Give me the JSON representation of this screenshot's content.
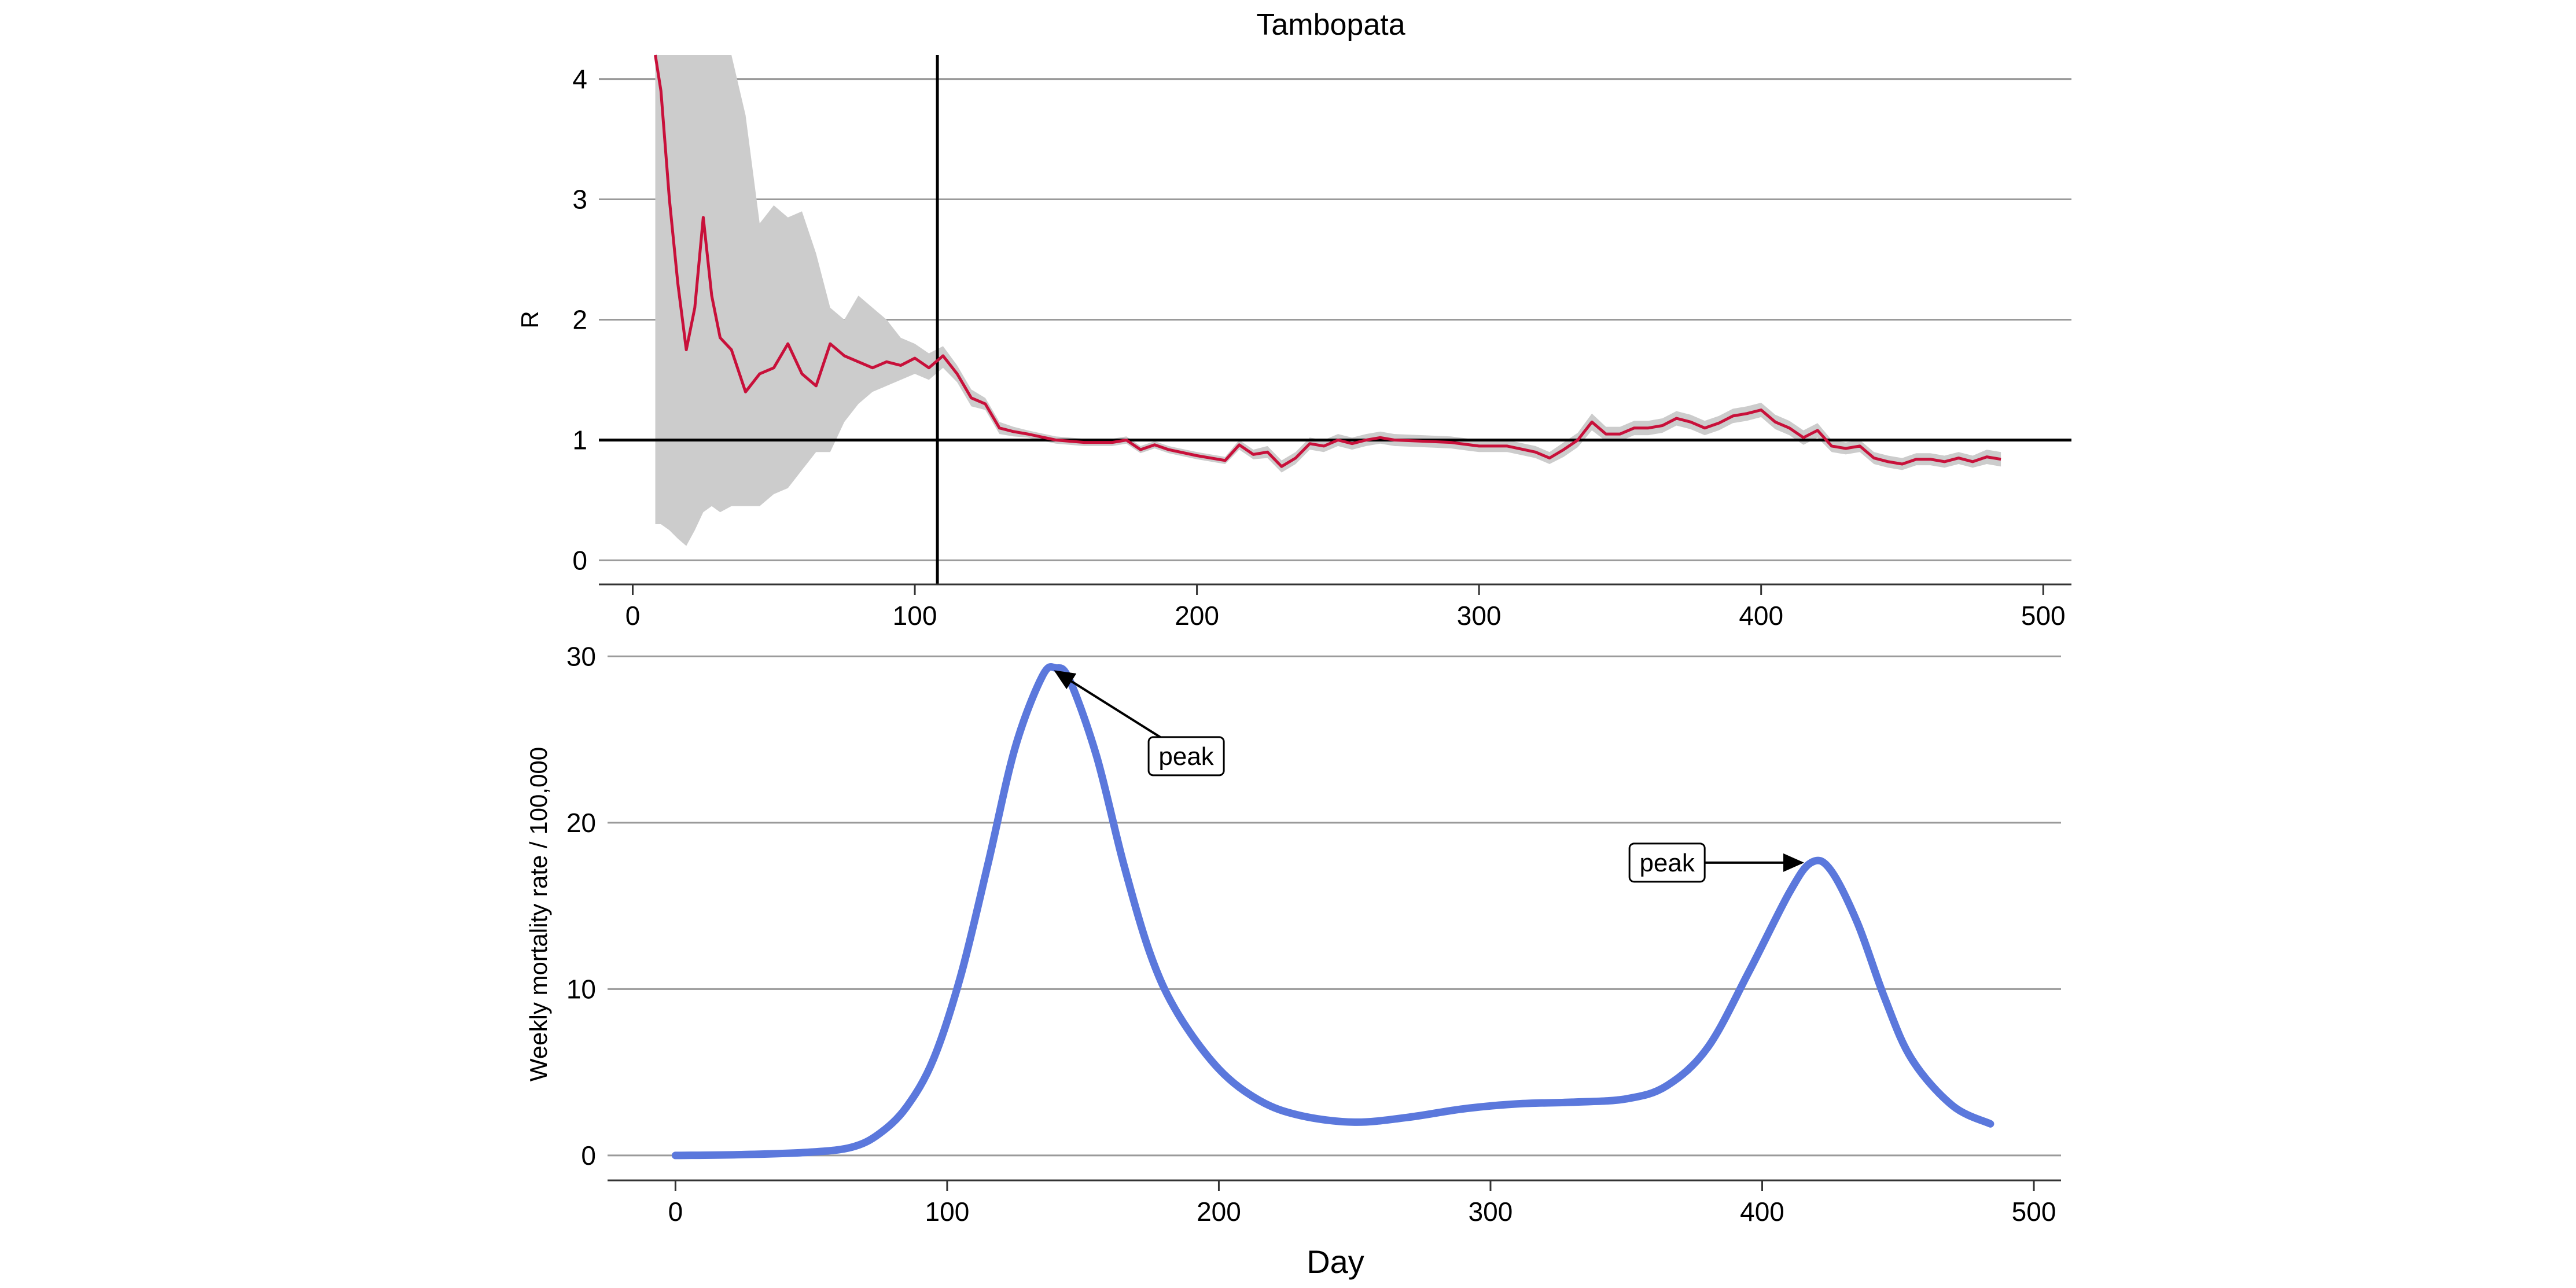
{
  "figure": {
    "title": "Tambopata",
    "xlabel": "Day"
  },
  "chart_data": [
    {
      "type": "line",
      "title": "Tambopata",
      "xlabel": "",
      "ylabel": "R",
      "xlim": [
        -12,
        510
      ],
      "ylim": [
        -0.2,
        4.2
      ],
      "xticks": [
        0,
        100,
        200,
        300,
        400,
        500
      ],
      "yticks": [
        0,
        1,
        2,
        3,
        4
      ],
      "grid": "horizontal",
      "colors": {
        "line": "#c8103a",
        "band": "#cccccc"
      },
      "reference_lines": {
        "horizontal_y": 1,
        "vertical_x": 108
      },
      "x": [
        8,
        10,
        13,
        16,
        19,
        22,
        25,
        28,
        31,
        35,
        40,
        45,
        50,
        55,
        60,
        65,
        70,
        75,
        80,
        85,
        90,
        95,
        100,
        105,
        110,
        115,
        120,
        125,
        130,
        135,
        140,
        150,
        160,
        170,
        175,
        180,
        185,
        190,
        200,
        210,
        215,
        220,
        225,
        230,
        235,
        240,
        245,
        250,
        255,
        260,
        265,
        270,
        280,
        290,
        300,
        310,
        320,
        325,
        330,
        335,
        340,
        345,
        350,
        355,
        360,
        365,
        370,
        375,
        380,
        385,
        390,
        395,
        400,
        405,
        410,
        415,
        420,
        425,
        430,
        435,
        440,
        445,
        450,
        455,
        460,
        465,
        470,
        475,
        480,
        485
      ],
      "y": [
        4.2,
        3.9,
        3.0,
        2.3,
        1.75,
        2.1,
        2.85,
        2.2,
        1.85,
        1.75,
        1.4,
        1.55,
        1.6,
        1.8,
        1.55,
        1.45,
        1.8,
        1.7,
        1.65,
        1.6,
        1.65,
        1.62,
        1.68,
        1.6,
        1.7,
        1.55,
        1.35,
        1.3,
        1.1,
        1.07,
        1.05,
        1.0,
        0.98,
        0.98,
        1.0,
        0.92,
        0.96,
        0.92,
        0.87,
        0.83,
        0.96,
        0.88,
        0.9,
        0.78,
        0.85,
        0.97,
        0.95,
        1.0,
        0.97,
        1.0,
        1.02,
        1.0,
        0.99,
        0.98,
        0.95,
        0.95,
        0.9,
        0.85,
        0.92,
        1.0,
        1.15,
        1.05,
        1.05,
        1.1,
        1.1,
        1.12,
        1.18,
        1.15,
        1.1,
        1.14,
        1.2,
        1.22,
        1.25,
        1.15,
        1.1,
        1.02,
        1.08,
        0.95,
        0.93,
        0.95,
        0.85,
        0.82,
        0.8,
        0.84,
        0.84,
        0.82,
        0.85,
        0.82,
        0.86,
        0.84
      ],
      "y_lower": [
        0.3,
        0.3,
        0.25,
        0.18,
        0.12,
        0.25,
        0.4,
        0.45,
        0.4,
        0.45,
        0.45,
        0.45,
        0.55,
        0.6,
        0.75,
        0.9,
        0.9,
        1.15,
        1.3,
        1.4,
        1.45,
        1.5,
        1.55,
        1.5,
        1.6,
        1.48,
        1.28,
        1.25,
        1.05,
        1.03,
        1.02,
        0.97,
        0.95,
        0.95,
        0.97,
        0.89,
        0.93,
        0.89,
        0.84,
        0.8,
        0.92,
        0.84,
        0.85,
        0.73,
        0.8,
        0.92,
        0.9,
        0.95,
        0.92,
        0.95,
        0.97,
        0.95,
        0.94,
        0.93,
        0.9,
        0.9,
        0.85,
        0.8,
        0.86,
        0.94,
        1.08,
        0.99,
        0.99,
        1.04,
        1.04,
        1.06,
        1.12,
        1.09,
        1.04,
        1.08,
        1.14,
        1.16,
        1.19,
        1.09,
        1.04,
        0.96,
        1.02,
        0.9,
        0.88,
        0.9,
        0.8,
        0.77,
        0.75,
        0.79,
        0.79,
        0.77,
        0.8,
        0.77,
        0.8,
        0.78
      ],
      "y_upper": [
        4.2,
        4.2,
        4.2,
        4.2,
        4.2,
        4.2,
        4.2,
        4.2,
        4.2,
        4.2,
        3.7,
        2.8,
        2.95,
        2.85,
        2.9,
        2.55,
        2.1,
        2.0,
        2.2,
        2.1,
        2.0,
        1.85,
        1.8,
        1.72,
        1.78,
        1.62,
        1.42,
        1.35,
        1.15,
        1.11,
        1.08,
        1.03,
        1.01,
        1.01,
        1.03,
        0.95,
        0.99,
        0.95,
        0.9,
        0.86,
        1.0,
        0.92,
        0.95,
        0.83,
        0.9,
        1.02,
        1.0,
        1.05,
        1.02,
        1.05,
        1.07,
        1.05,
        1.04,
        1.03,
        1.0,
        1.0,
        0.95,
        0.9,
        0.98,
        1.06,
        1.22,
        1.11,
        1.11,
        1.16,
        1.16,
        1.18,
        1.24,
        1.21,
        1.16,
        1.2,
        1.26,
        1.28,
        1.31,
        1.21,
        1.16,
        1.08,
        1.14,
        1.0,
        0.98,
        1.0,
        0.9,
        0.87,
        0.85,
        0.89,
        0.89,
        0.87,
        0.9,
        0.87,
        0.92,
        0.9
      ]
    },
    {
      "type": "line",
      "title": "",
      "xlabel": "Day",
      "ylabel": "Weekly mortality rate / 100,000",
      "xlim": [
        -25,
        510
      ],
      "ylim": [
        -1.5,
        30.5
      ],
      "xticks": [
        0,
        100,
        200,
        300,
        400,
        500
      ],
      "yticks": [
        0,
        10,
        20,
        30
      ],
      "grid": "horizontal",
      "colors": {
        "line": "#5b78dc"
      },
      "x": [
        0,
        25,
        50,
        65,
        75,
        85,
        95,
        105,
        115,
        125,
        135,
        140,
        145,
        155,
        165,
        175,
        185,
        200,
        215,
        230,
        250,
        270,
        290,
        310,
        330,
        350,
        365,
        380,
        395,
        410,
        418,
        425,
        435,
        445,
        455,
        470,
        484
      ],
      "y": [
        0,
        0.05,
        0.2,
        0.5,
        1.3,
        2.9,
        5.8,
        10.8,
        17.5,
        24.5,
        28.8,
        29.3,
        28.6,
        24.0,
        17.5,
        12.0,
        8.5,
        5.2,
        3.3,
        2.4,
        2.0,
        2.3,
        2.8,
        3.1,
        3.2,
        3.4,
        4.2,
        6.5,
        11.0,
        15.8,
        17.6,
        17.2,
        14.0,
        9.5,
        5.8,
        3.0,
        1.9
      ],
      "annotations": [
        {
          "text": "peak",
          "x": 140,
          "y": 29.3,
          "label_x": 188,
          "label_y": 24.0
        },
        {
          "text": "peak",
          "x": 418,
          "y": 17.6,
          "label_x": 365,
          "label_y": 17.6
        }
      ]
    }
  ]
}
